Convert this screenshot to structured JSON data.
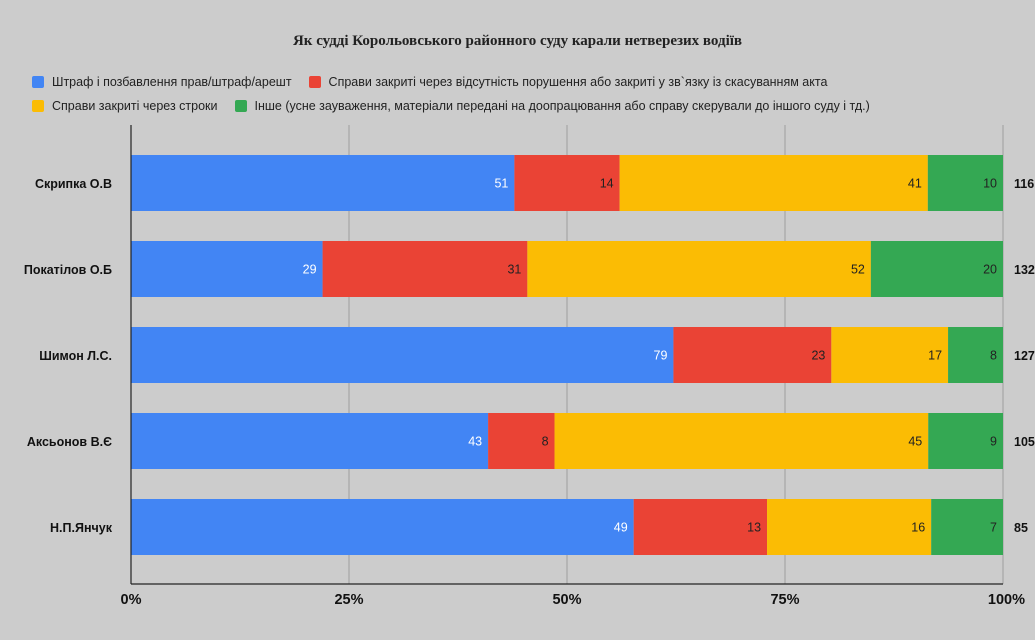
{
  "chart_data": {
    "type": "bar",
    "orientation": "horizontal",
    "stacked": "percent",
    "title": "Як судді Корольовського районного суду карали нетверезих водіїв",
    "categories": [
      "Скрипка О.В",
      "Покатілов О.Б",
      "Шимон Л.С.",
      "Аксьонов В.Є",
      "Н.П.Янчук"
    ],
    "series": [
      {
        "name": "Штраф і позбавлення прав/штраф/арешт",
        "color": "#4285f4",
        "values": [
          51,
          29,
          79,
          43,
          49
        ]
      },
      {
        "name": "Справи закриті через відсутність порушення або закриті у зв`язку із скасуванням акта",
        "color": "#ea4335",
        "values": [
          14,
          31,
          23,
          8,
          13
        ]
      },
      {
        "name": "Справи закриті через строки",
        "color": "#fbbc04",
        "values": [
          41,
          52,
          17,
          45,
          16
        ]
      },
      {
        "name": "Інше (усне зауваження, матеріали передані на доопрацювання або справу скерували до іншого суду і тд.)",
        "color": "#34a853",
        "values": [
          10,
          20,
          8,
          9,
          7
        ]
      }
    ],
    "totals": [
      "116",
      "132",
      "127",
      "105",
      "85"
    ],
    "xticks": [
      "0%",
      "25%",
      "50%",
      "75%",
      "100%"
    ],
    "xlim": [
      0,
      100
    ],
    "grid": true,
    "legend_position": "top"
  }
}
